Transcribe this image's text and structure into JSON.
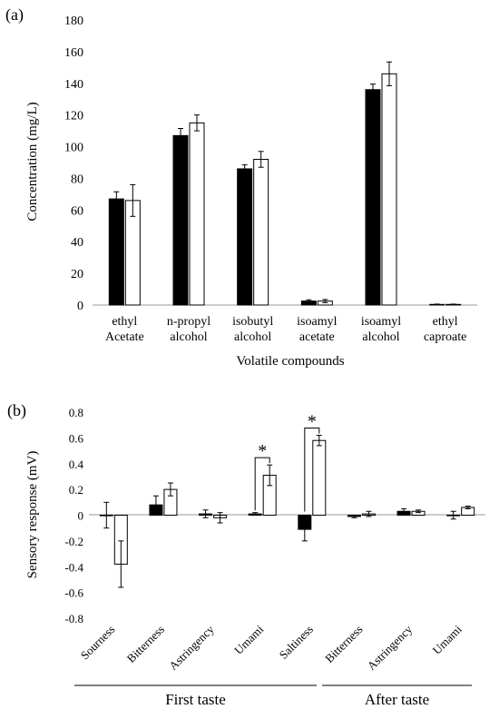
{
  "chart_data": [
    {
      "panel_label": "(a)",
      "type": "bar",
      "xlabel": "Volatile compounds",
      "ylabel": "Concentration (mg/L)",
      "ylim": [
        0,
        180
      ],
      "yticks": [
        0,
        20,
        40,
        60,
        80,
        100,
        120,
        140,
        160,
        180
      ],
      "categories": [
        [
          "ethyl",
          "Acetate"
        ],
        [
          "n-propyl",
          "alcohol"
        ],
        [
          "isobutyl",
          "alcohol"
        ],
        [
          "isoamyl",
          "acetate"
        ],
        [
          "isoamyl",
          "alcohol"
        ],
        [
          "ethyl",
          "caproate"
        ]
      ],
      "series": [
        {
          "fill": "#000000",
          "values": [
            67,
            107,
            86,
            2.5,
            136,
            0.4
          ],
          "errors": [
            4.5,
            4.5,
            2.5,
            0.8,
            3.5,
            0.2
          ]
        },
        {
          "fill": "#ffffff",
          "values": [
            66,
            115,
            92,
            2.5,
            146,
            0.4
          ],
          "errors": [
            10,
            5,
            5,
            1,
            7.5,
            0.2
          ]
        }
      ],
      "legend": "none",
      "grid": false
    },
    {
      "panel_label": "(b)",
      "type": "bar",
      "ylabel": "Sensory response (mV)",
      "ylim": [
        -0.8,
        0.8
      ],
      "yticks": [
        "-0.8",
        "-0.6",
        "-0.4",
        "-0.2",
        "0",
        "0.2",
        "0.4",
        "0.6",
        "0.8"
      ],
      "categories": [
        "Sourness",
        "Bitterness",
        "Astringency",
        "Umami",
        "Saltiness",
        "Bitterness",
        "Astringency",
        "Umami"
      ],
      "series": [
        {
          "fill": "#000000",
          "values": [
            0,
            0.08,
            0.01,
            0.01,
            -0.11,
            -0.01,
            0.03,
            0
          ],
          "errors": [
            0.1,
            0.07,
            0.03,
            0.01,
            0.09,
            0.01,
            0.02,
            0.03
          ]
        },
        {
          "fill": "#ffffff",
          "values": [
            -0.38,
            0.2,
            -0.02,
            0.31,
            0.58,
            0.01,
            0.03,
            0.06
          ],
          "errors": [
            0.18,
            0.05,
            0.04,
            0.08,
            0.04,
            0.02,
            0.01,
            0.01
          ]
        }
      ],
      "groups": [
        {
          "label": "First taste",
          "categories": [
            "Sourness",
            "Bitterness",
            "Astringency",
            "Umami",
            "Saltiness"
          ]
        },
        {
          "label": "After taste",
          "categories": [
            "Bitterness",
            "Astringency",
            "Umami"
          ]
        }
      ],
      "significance": [
        {
          "category_index": 3,
          "mark": "*"
        },
        {
          "category_index": 4,
          "mark": "*"
        }
      ],
      "legend": "none",
      "grid": false
    }
  ]
}
